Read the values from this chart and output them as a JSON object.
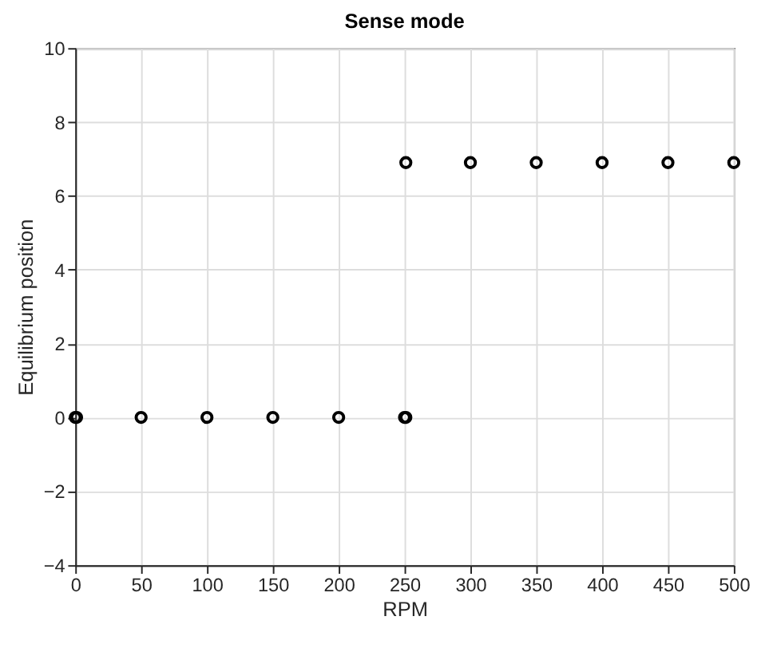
{
  "chart_data": {
    "type": "scatter",
    "title": "Sense mode",
    "xlabel": "RPM",
    "ylabel": "Equilibrium position",
    "x": [
      0,
      1,
      50,
      100,
      150,
      200,
      250,
      251,
      251,
      300,
      350,
      400,
      450,
      500
    ],
    "series": [
      {
        "color": "#000000",
        "values": [
          0,
          0,
          0,
          0,
          0,
          0,
          0,
          0,
          6.9,
          6.9,
          6.9,
          6.9,
          6.9,
          6.9
        ]
      }
    ],
    "xlim": [
      0,
      500
    ],
    "xticks": [
      0,
      50,
      100,
      150,
      200,
      250,
      300,
      350,
      400,
      450,
      500
    ],
    "ylim": [
      -4,
      10
    ],
    "yticks": [
      -4,
      -2,
      0,
      2,
      4,
      6,
      8,
      10
    ],
    "grid": true,
    "marker": "circle"
  }
}
